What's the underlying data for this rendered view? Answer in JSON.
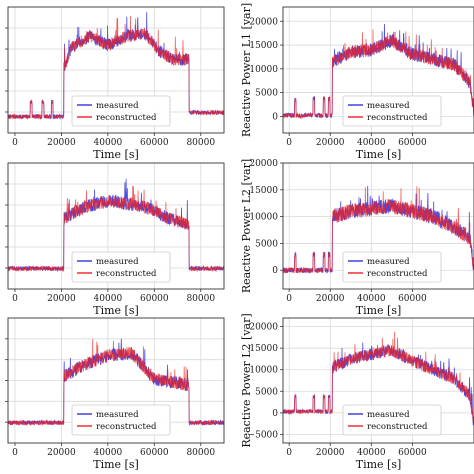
{
  "chart_data": [
    {
      "type": "line",
      "xlabel": "Time [s]",
      "ylabel": "",
      "xlim": [
        -3000,
        90000
      ],
      "ylim": [
        -2000,
        19500
      ],
      "xticks": [
        0,
        20000,
        40000,
        60000,
        80000
      ],
      "xtick_labels": [
        "0",
        "20000",
        "40000",
        "60000",
        "80000"
      ],
      "yticks": [],
      "ytick_labels": [],
      "grid": true,
      "legend_position": "lower-center",
      "profile": {
        "base": 800,
        "spike_times": [
          7000,
          12000,
          16000
        ],
        "spike_height": 2500,
        "day_start": 21000,
        "day_end": 75000,
        "day_points": [
          [
            21000,
            8500
          ],
          [
            24000,
            12500
          ],
          [
            32000,
            14500
          ],
          [
            40000,
            13000
          ],
          [
            48000,
            14500
          ],
          [
            56000,
            15000
          ],
          [
            62000,
            12000
          ],
          [
            68000,
            10500
          ],
          [
            75000,
            10500
          ]
        ],
        "after": 1500,
        "noise": 1500
      },
      "series": [
        {
          "name": "measured",
          "color": "#3333dd"
        },
        {
          "name": "reconstructed",
          "color": "#ee2222"
        }
      ]
    },
    {
      "type": "line",
      "xlabel": "Time [s]",
      "ylabel": "Reactive Power L1 [var]",
      "xlim": [
        -3000,
        90000
      ],
      "ylim": [
        -3500,
        23000
      ],
      "xticks": [
        0,
        20000,
        40000,
        60000
      ],
      "xtick_labels": [
        "0",
        "20000",
        "40000",
        "60000"
      ],
      "yticks": [
        0,
        5000,
        10000,
        15000,
        20000
      ],
      "ytick_labels": [
        "0",
        "5000",
        "10000",
        "15000",
        "20000"
      ],
      "grid": true,
      "legend_position": "lower-right",
      "profile": {
        "base": 200,
        "spike_times": [
          3000,
          12000,
          17000,
          19500
        ],
        "spike_height": 3500,
        "day_start": 21000,
        "day_end": 90000,
        "day_points": [
          [
            21000,
            11500
          ],
          [
            30000,
            13500
          ],
          [
            40000,
            14000
          ],
          [
            50000,
            16000
          ],
          [
            60000,
            13000
          ],
          [
            70000,
            12000
          ],
          [
            80000,
            11000
          ],
          [
            88000,
            7000
          ],
          [
            90000,
            1000
          ]
        ],
        "after": 1000,
        "noise": 2000
      },
      "series": [
        {
          "name": "measured",
          "color": "#3333dd"
        },
        {
          "name": "reconstructed",
          "color": "#ee2222"
        }
      ]
    },
    {
      "type": "line",
      "xlabel": "Time [s]",
      "ylabel": "",
      "xlim": [
        -3000,
        90000
      ],
      "ylim": [
        -2000,
        19500
      ],
      "xticks": [
        0,
        20000,
        40000,
        60000,
        80000
      ],
      "xtick_labels": [
        "0",
        "20000",
        "40000",
        "60000",
        "80000"
      ],
      "yticks": [],
      "ytick_labels": [],
      "grid": true,
      "legend_position": "lower-right",
      "profile": {
        "base": 1500,
        "spike_times": [],
        "spike_height": 0,
        "day_start": 21000,
        "day_end": 75000,
        "day_points": [
          [
            21000,
            10000
          ],
          [
            30000,
            12000
          ],
          [
            40000,
            13000
          ],
          [
            50000,
            12500
          ],
          [
            60000,
            11500
          ],
          [
            66000,
            10000
          ],
          [
            75000,
            9000
          ]
        ],
        "after": 1500,
        "noise": 1600
      },
      "series": [
        {
          "name": "measured",
          "color": "#3333dd"
        },
        {
          "name": "reconstructed",
          "color": "#ee2222"
        }
      ]
    },
    {
      "type": "line",
      "xlabel": "Time [s]",
      "ylabel": "Reactive Power L2 [var]",
      "xlim": [
        -3000,
        90000
      ],
      "ylim": [
        -3500,
        20000
      ],
      "xticks": [
        0,
        20000,
        40000,
        60000
      ],
      "xtick_labels": [
        "0",
        "20000",
        "40000",
        "60000"
      ],
      "yticks": [
        0,
        5000,
        10000,
        15000,
        20000
      ],
      "ytick_labels": [
        "0",
        "5000",
        "10000",
        "15000",
        "20000"
      ],
      "grid": true,
      "legend_position": "lower-right",
      "profile": {
        "base": 0,
        "spike_times": [
          3000,
          12000,
          17000,
          19500
        ],
        "spike_height": 3000,
        "day_start": 21000,
        "day_end": 90000,
        "day_points": [
          [
            21000,
            10000
          ],
          [
            30000,
            11000
          ],
          [
            40000,
            11500
          ],
          [
            50000,
            12000
          ],
          [
            60000,
            11000
          ],
          [
            70000,
            10000
          ],
          [
            80000,
            8000
          ],
          [
            88000,
            6000
          ],
          [
            90000,
            0
          ]
        ],
        "after": 0,
        "noise": 2000
      },
      "series": [
        {
          "name": "measured",
          "color": "#3333dd"
        },
        {
          "name": "reconstructed",
          "color": "#ee2222"
        }
      ]
    },
    {
      "type": "line",
      "xlabel": "Time [s]",
      "ylabel": "",
      "xlim": [
        -3000,
        90000
      ],
      "ylim": [
        -2000,
        19500
      ],
      "xticks": [
        0,
        20000,
        40000,
        60000,
        80000
      ],
      "xtick_labels": [
        "0",
        "20000",
        "40000",
        "60000",
        "80000"
      ],
      "yticks": [],
      "ytick_labels": [],
      "grid": true,
      "legend_position": "lower-center",
      "profile": {
        "base": 1500,
        "spike_times": [],
        "spike_height": 0,
        "day_start": 21000,
        "day_end": 75000,
        "day_points": [
          [
            21000,
            9500
          ],
          [
            30000,
            11500
          ],
          [
            40000,
            13000
          ],
          [
            50000,
            13500
          ],
          [
            60000,
            9000
          ],
          [
            75000,
            8000
          ]
        ],
        "after": 1500,
        "noise": 1600
      },
      "series": [
        {
          "name": "measured",
          "color": "#3333dd"
        },
        {
          "name": "reconstructed",
          "color": "#ee2222"
        }
      ]
    },
    {
      "type": "line",
      "xlabel": "Time [s]",
      "ylabel": "Reactive Power L2 [var]",
      "xlim": [
        -3000,
        90000
      ],
      "ylim": [
        -7000,
        22000
      ],
      "xticks": [
        0,
        20000,
        40000,
        60000
      ],
      "xtick_labels": [
        "0",
        "20000",
        "40000",
        "60000"
      ],
      "yticks": [
        -5000,
        0,
        5000,
        10000,
        15000,
        20000
      ],
      "ytick_labels": [
        "−5000",
        "0",
        "5000",
        "10000",
        "15000",
        "20000"
      ],
      "grid": true,
      "legend_position": "lower-right",
      "profile": {
        "base": 300,
        "spike_times": [
          3000,
          12000,
          17000,
          19500
        ],
        "spike_height": 3500,
        "day_start": 21000,
        "day_end": 90000,
        "day_points": [
          [
            21000,
            10500
          ],
          [
            30000,
            12500
          ],
          [
            40000,
            13500
          ],
          [
            50000,
            14500
          ],
          [
            60000,
            12000
          ],
          [
            70000,
            10000
          ],
          [
            80000,
            8000
          ],
          [
            88000,
            4000
          ],
          [
            90000,
            -3000
          ]
        ],
        "after": 0,
        "noise": 2000
      },
      "series": [
        {
          "name": "measured",
          "color": "#3333dd"
        },
        {
          "name": "reconstructed",
          "color": "#ee2222"
        }
      ]
    }
  ]
}
